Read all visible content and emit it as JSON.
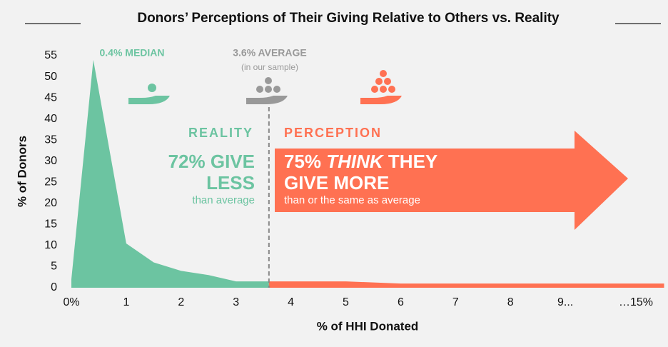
{
  "chart_data": {
    "type": "area",
    "title": "Donors’ Perceptions of Their Giving Relative to Others vs. Reality",
    "x_label": "% of HHI Donated",
    "y_label": "% of Donors",
    "areas": [
      {
        "color": "#6cc4a1",
        "x": [
          0,
          0.4,
          1,
          1.5,
          2,
          2.5,
          3,
          3.6
        ],
        "values": [
          2,
          54,
          10.5,
          6,
          4,
          3,
          1.5,
          1.5
        ]
      },
      {
        "color": "#ff7152",
        "x": [
          3.6,
          5,
          6,
          10.8
        ],
        "values": [
          1.5,
          1.5,
          1,
          1
        ]
      }
    ],
    "average_line": 3.6,
    "xlim": [
      0,
      10.8
    ],
    "ylim": [
      0,
      55
    ],
    "xticks": [
      {
        "value": 0,
        "label": "0%"
      },
      1,
      2,
      3,
      4,
      5,
      6,
      7,
      8,
      {
        "value": 9,
        "label": "9..."
      },
      {
        "value": 10,
        "label": "…15%"
      }
    ],
    "yticks": [
      0,
      5,
      10,
      15,
      20,
      25,
      30,
      35,
      40,
      45,
      50,
      55
    ],
    "annotations": {
      "median": "0.4% MEDIAN",
      "average": "3.6% AVERAGE",
      "average_note": "(in our sample)",
      "reality": "REALITY",
      "reality_line1": "72% GIVE",
      "reality_line2": "LESS",
      "reality_note": "than average",
      "perception": "PERCEPTION",
      "perception_line1_a": "75% ",
      "perception_line1_b": "THINK",
      "perception_line1_c": " THEY",
      "perception_line2": "GIVE MORE",
      "perception_note": "than or the same as average"
    }
  }
}
